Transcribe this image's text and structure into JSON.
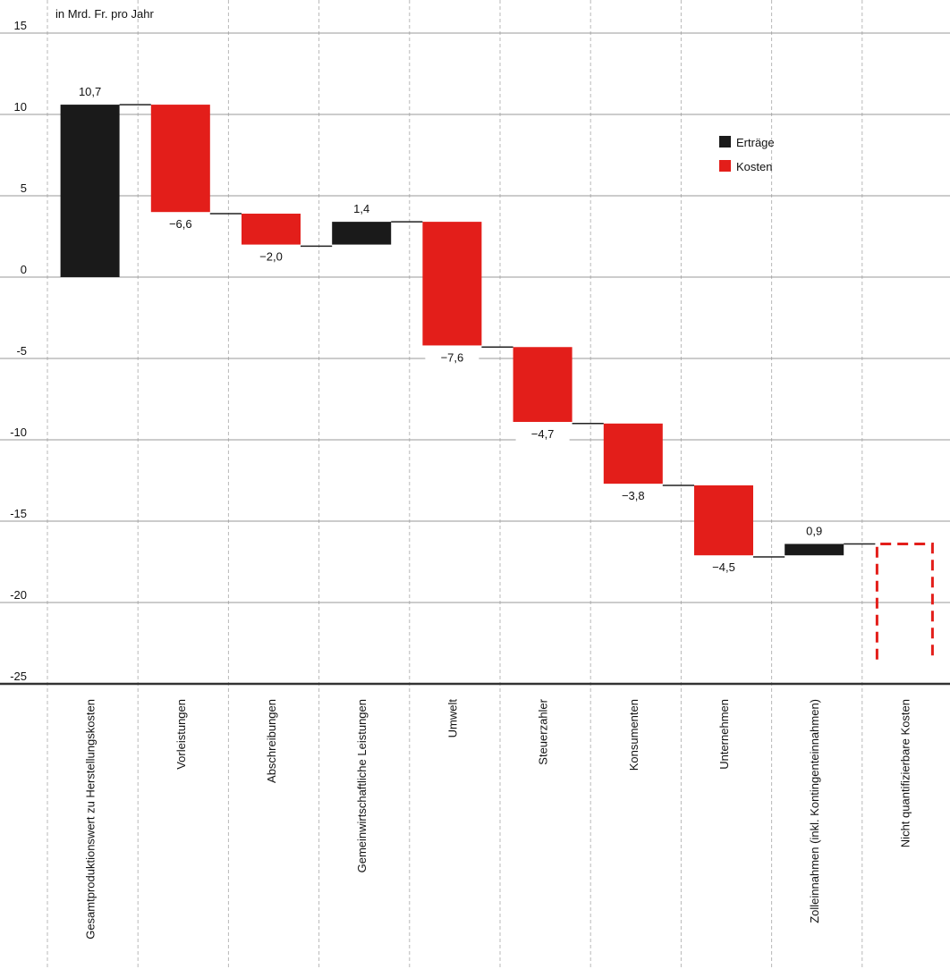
{
  "chart_data": {
    "type": "bar",
    "subtype": "waterfall",
    "ylabel": "in Mrd. Fr. pro Jahr",
    "ylim": [
      -25,
      15
    ],
    "yticks": [
      15,
      10,
      5,
      0,
      -5,
      -10,
      -15,
      -20,
      -25
    ],
    "grid": true,
    "legend_position": "top-right",
    "legend": [
      {
        "label": "Erträge",
        "color": "#1a1a1a"
      },
      {
        "label": "Kosten",
        "color": "#e31e1a"
      }
    ],
    "colors": {
      "ertraege": "#1a1a1a",
      "kosten": "#e31e1a",
      "grid": "#9a9a9a",
      "connector": "#222222"
    },
    "categories": [
      "Gesamtproduktionswert zu Herstellungskosten",
      "Vorleistungen",
      "Abschreibungen",
      "Gemeinwirtschaftliche Leistungen",
      "Umwelt",
      "Steuerzahler",
      "Konsumenten",
      "Unternehmen",
      "Zolleinnahmen (inkl. Kontingenteinnahmen)",
      "Nicht quantifizierbare Kosten"
    ],
    "bars": [
      {
        "start": 0,
        "end": 10.6,
        "label": "10,7",
        "kind": "ertraege",
        "label_pos": "above"
      },
      {
        "start": 10.6,
        "end": 4.0,
        "label": "−6,6",
        "kind": "kosten",
        "label_pos": "below"
      },
      {
        "start": 3.9,
        "end": 2.0,
        "label": "−2,0",
        "kind": "kosten",
        "label_pos": "below"
      },
      {
        "start": 2.0,
        "end": 3.4,
        "label": "1,4",
        "kind": "ertraege",
        "label_pos": "above"
      },
      {
        "start": 3.4,
        "end": -4.2,
        "label": "−7,6",
        "kind": "kosten",
        "label_pos": "below"
      },
      {
        "start": -4.3,
        "end": -8.9,
        "label": "−4,7",
        "kind": "kosten",
        "label_pos": "below"
      },
      {
        "start": -9.0,
        "end": -12.7,
        "label": "−3,8",
        "kind": "kosten",
        "label_pos": "below"
      },
      {
        "start": -12.8,
        "end": -17.1,
        "label": "−4,5",
        "kind": "kosten",
        "label_pos": "below"
      },
      {
        "start": -17.1,
        "end": -16.4,
        "label": "0,9",
        "kind": "ertraege",
        "label_pos": "above"
      },
      {
        "start": -16.4,
        "end": -23.5,
        "label": "",
        "kind": "unquantified",
        "label_pos": "none"
      }
    ],
    "connectors": [
      10.6,
      3.9,
      1.9,
      3.4,
      -4.3,
      -9.0,
      -12.8,
      -17.2,
      -16.4
    ]
  }
}
